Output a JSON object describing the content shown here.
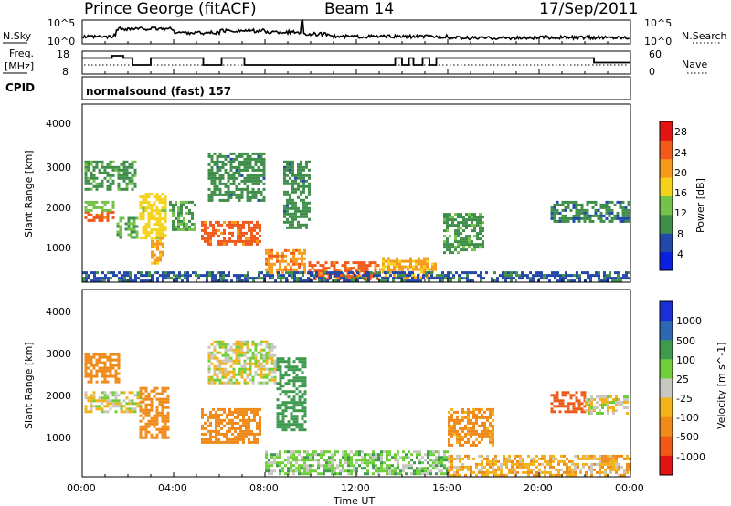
{
  "header": {
    "station": "Prince George (fitACF)",
    "beam": "Beam 14",
    "date": "17/Sep/2011"
  },
  "sky_panel": {
    "left_label": "N.Sky",
    "left_ticks": [
      "10^5",
      "10^0"
    ],
    "right_label": "N.Search",
    "right_ticks": [
      "10^5",
      "10^0"
    ]
  },
  "freq_panel": {
    "left_label_1": "Freq.",
    "left_label_2": "[MHz]",
    "left_ticks": [
      "18",
      "8"
    ],
    "right_label": "Nave",
    "right_ticks": [
      "60",
      "0"
    ]
  },
  "cpid_panel": {
    "label": "CPID",
    "program": "normalsound (fast) 157"
  },
  "x_axis": {
    "label": "Time UT",
    "ticks": [
      "00:00",
      "04:00",
      "08:00",
      "12:00",
      "16:00",
      "20:00",
      "00:00"
    ]
  },
  "power_panel": {
    "ylabel": "Slant Range [km]",
    "yticks": [
      "4000",
      "3000",
      "2000",
      "1000"
    ],
    "colorbar_label": "Power [dB]",
    "colorbar_ticks": [
      "28",
      "24",
      "20",
      "16",
      "12",
      "8",
      "4"
    ],
    "colors": [
      "#0b1fe0",
      "#2348a8",
      "#3f8f4a",
      "#73c24a",
      "#f5d21b",
      "#f59a1a",
      "#f05a1a",
      "#e21414"
    ]
  },
  "velocity_panel": {
    "ylabel": "Slant Range [km]",
    "yticks": [
      "4000",
      "3000",
      "2000",
      "1000"
    ],
    "colorbar_label": "Velocity [m s^-1]",
    "colorbar_ticks": [
      "1000",
      "500",
      "100",
      "25",
      "-25",
      "-100",
      "-500",
      "-1000"
    ],
    "colors": [
      "#1a2fd6",
      "#2d68b0",
      "#3f9a50",
      "#6fcf3a",
      "#c8c8c0",
      "#f2b21a",
      "#f08a1a",
      "#ef5a18",
      "#e21414"
    ]
  },
  "chart_data": [
    {
      "type": "heatmap",
      "title": "Power",
      "xlabel": "Time UT",
      "ylabel": "Slant Range [km]",
      "x_range_hours": [
        0,
        24
      ],
      "ylim": [
        180,
        4600
      ],
      "colorbar": {
        "label": "Power [dB]",
        "ticks": [
          28,
          24,
          20,
          16,
          12,
          8,
          4
        ]
      },
      "grid": false,
      "regions": [
        {
          "t": [
            0.1,
            1.4
          ],
          "r": [
            1700,
            1950
          ],
          "v": 27
        },
        {
          "t": [
            0.1,
            1.4
          ],
          "r": [
            1950,
            2200
          ],
          "v": 14
        },
        {
          "t": [
            0.1,
            2.3
          ],
          "r": [
            2500,
            3200
          ],
          "v": 10
        },
        {
          "t": [
            1.5,
            2.4
          ],
          "r": [
            1300,
            1800
          ],
          "v": 12
        },
        {
          "t": [
            2.5,
            3.6
          ],
          "r": [
            1300,
            2400
          ],
          "v": 18
        },
        {
          "t": [
            3.0,
            3.6
          ],
          "r": [
            650,
            1300
          ],
          "v": 22
        },
        {
          "t": [
            3.8,
            5.0
          ],
          "r": [
            1500,
            2200
          ],
          "v": 11
        },
        {
          "t": [
            5.2,
            7.8
          ],
          "r": [
            1100,
            1700
          ],
          "v": 27
        },
        {
          "t": [
            5.5,
            8.0
          ],
          "r": [
            2200,
            3400
          ],
          "v": 9
        },
        {
          "t": [
            8.0,
            9.8
          ],
          "r": [
            400,
            1000
          ],
          "v": 24
        },
        {
          "t": [
            8.8,
            10.0
          ],
          "r": [
            1500,
            3200
          ],
          "v": 9
        },
        {
          "t": [
            9.9,
            13.0
          ],
          "r": [
            280,
            700
          ],
          "v": 27
        },
        {
          "t": [
            13.0,
            15.5
          ],
          "r": [
            280,
            800
          ],
          "v": 22
        },
        {
          "t": [
            15.8,
            17.6
          ],
          "r": [
            900,
            1900
          ],
          "v": 10
        },
        {
          "t": [
            20.5,
            23.9
          ],
          "r": [
            1700,
            2200
          ],
          "v": 8
        },
        {
          "t": [
            0.0,
            24.0
          ],
          "r": [
            200,
            450
          ],
          "v": 6
        }
      ]
    },
    {
      "type": "heatmap",
      "title": "Velocity",
      "xlabel": "Time UT",
      "ylabel": "Slant Range [km]",
      "x_range_hours": [
        0,
        24
      ],
      "ylim": [
        180,
        4600
      ],
      "colorbar": {
        "label": "Velocity [m s^-1]",
        "ticks": [
          1000,
          500,
          100,
          25,
          -25,
          -100,
          -500,
          -1000
        ]
      },
      "grid": false,
      "regions": [
        {
          "t": [
            0.1,
            1.6
          ],
          "r": [
            2400,
            3100
          ],
          "v": -400
        },
        {
          "t": [
            0.1,
            2.6
          ],
          "r": [
            1700,
            2200
          ],
          "v": 0
        },
        {
          "t": [
            2.5,
            3.8
          ],
          "r": [
            1100,
            2300
          ],
          "v": -300
        },
        {
          "t": [
            5.2,
            7.8
          ],
          "r": [
            1000,
            1800
          ],
          "v": -350
        },
        {
          "t": [
            5.5,
            8.5
          ],
          "r": [
            2400,
            3400
          ],
          "v": 0
        },
        {
          "t": [
            8.5,
            9.8
          ],
          "r": [
            1300,
            3000
          ],
          "v": 200
        },
        {
          "t": [
            8.0,
            16.0
          ],
          "r": [
            250,
            800
          ],
          "v": 60
        },
        {
          "t": [
            16.0,
            18.0
          ],
          "r": [
            900,
            1800
          ],
          "v": -150
        },
        {
          "t": [
            20.5,
            22.0
          ],
          "r": [
            1700,
            2200
          ],
          "v": -600
        },
        {
          "t": [
            22.0,
            23.9
          ],
          "r": [
            1700,
            2100
          ],
          "v": 0
        },
        {
          "t": [
            16.0,
            24.0
          ],
          "r": [
            200,
            700
          ],
          "v": -80
        }
      ]
    },
    {
      "type": "line",
      "title": "N.Sky",
      "x_hours": [
        0,
        1.4,
        1.5,
        4.0,
        6.0,
        8.0,
        9.6,
        9.7,
        11.0,
        16.0,
        20.0,
        24.0
      ],
      "values_log10": [
        1.3,
        1.6,
        3.0,
        2.2,
        2.6,
        2.3,
        4.8,
        1.9,
        1.4,
        1.1,
        1.2,
        1.3
      ],
      "ylim": [
        0,
        5
      ]
    },
    {
      "type": "line",
      "title": "Freq. [MHz]",
      "x_hours": [
        0,
        1.3,
        1.8,
        2.2,
        3.0,
        5.3,
        6.1,
        7.1,
        13.7,
        14.0,
        14.3,
        14.5,
        14.9,
        15.2,
        15.5,
        16.0,
        21.5,
        22.4,
        24.0
      ],
      "values": [
        15,
        16,
        15,
        12,
        15,
        12,
        15,
        12,
        15,
        12,
        15,
        12,
        15,
        12,
        15,
        15,
        15,
        13,
        13
      ],
      "ylim": [
        8,
        18
      ]
    }
  ]
}
